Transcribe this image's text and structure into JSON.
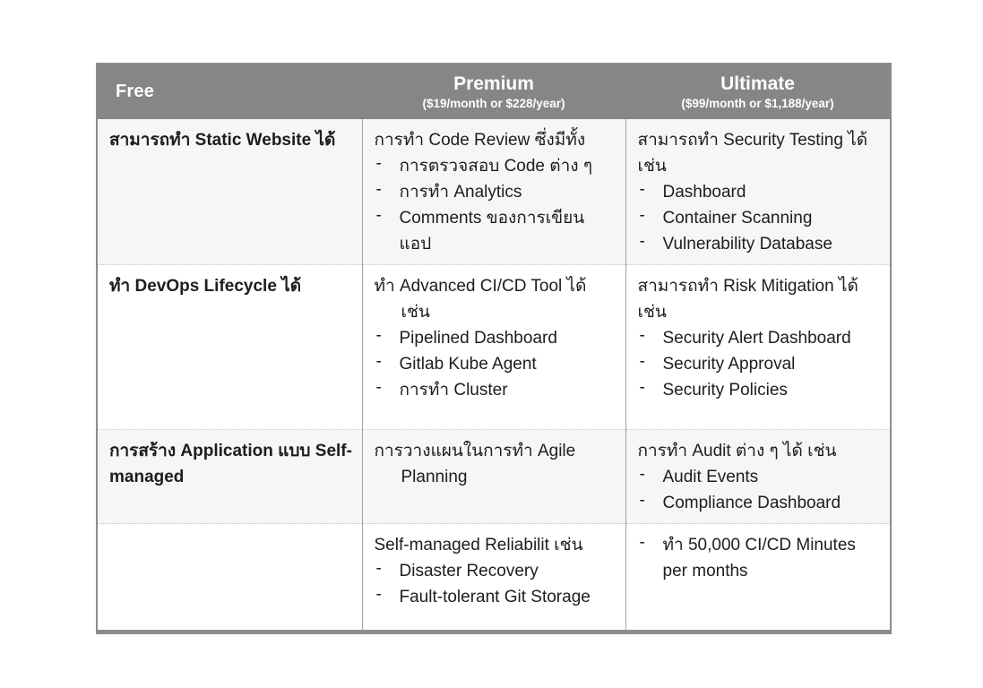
{
  "colors": {
    "header_bg": "#868686",
    "header_text": "#ffffff",
    "body_text": "#1d1d1d",
    "outer_border": "#8c8c8c",
    "column_divider": "#a0a0a0",
    "row_divider": "#c4c4c4",
    "band_bg": "#f6f6f4"
  },
  "bullet_glyph": "-",
  "table": {
    "columns": [
      {
        "title": "Free",
        "subtitle": ""
      },
      {
        "title": "Premium",
        "subtitle": "($19/month or $228/year)"
      },
      {
        "title": "Ultimate",
        "subtitle": "($99/month or $1,188/year)"
      }
    ],
    "rows": [
      {
        "cells": [
          {
            "heading_lines": [
              {
                "text": "สามารถทำ Static Website ได้",
                "indent": false
              }
            ],
            "bullets": []
          },
          {
            "heading_lines": [
              {
                "text": "การทำ Code Review ซึ่งมีทั้ง",
                "indent": false
              }
            ],
            "bullets": [
              "การตรวจสอบ Code ต่าง ๆ",
              "การทำ Analytics",
              "Comments ของการเขียนแอป"
            ]
          },
          {
            "heading_lines": [
              {
                "text": "สามารถทำ Security Testing ได้ เช่น",
                "indent": false
              }
            ],
            "bullets": [
              "Dashboard",
              "Container Scanning",
              "Vulnerability Database"
            ]
          }
        ]
      },
      {
        "cells": [
          {
            "heading_lines": [
              {
                "text": "ทำ DevOps Lifecycle ได้",
                "indent": false
              }
            ],
            "bullets": []
          },
          {
            "heading_lines": [
              {
                "text": "ทำ Advanced CI/CD Tool ได้",
                "indent": false
              },
              {
                "text": "เช่น",
                "indent": true
              }
            ],
            "bullets": [
              "Pipelined Dashboard",
              "Gitlab Kube Agent",
              "การทำ Cluster"
            ]
          },
          {
            "heading_lines": [
              {
                "text": "สามารถทำ Risk Mitigation ได้ เช่น",
                "indent": false
              }
            ],
            "bullets": [
              "Security Alert Dashboard",
              "Security Approval",
              "Security Policies"
            ]
          }
        ]
      },
      {
        "cells": [
          {
            "heading_lines": [
              {
                "text": "การสร้าง Application แบบ Self-managed",
                "indent": false
              }
            ],
            "bullets": []
          },
          {
            "heading_lines": [
              {
                "text": "การวางแผนในการทำ Agile",
                "indent": false
              },
              {
                "text": "Planning",
                "indent": true
              }
            ],
            "bullets": []
          },
          {
            "heading_lines": [
              {
                "text": "การทำ Audit ต่าง ๆ ได้ เช่น",
                "indent": false
              }
            ],
            "bullets": [
              "Audit Events",
              "Compliance Dashboard"
            ]
          }
        ]
      },
      {
        "cells": [
          {
            "heading_lines": [],
            "bullets": []
          },
          {
            "heading_lines": [
              {
                "text": "Self-managed Reliabilit เช่น",
                "indent": false
              }
            ],
            "bullets": [
              "Disaster Recovery",
              "Fault-tolerant Git Storage"
            ]
          },
          {
            "heading_lines": [],
            "bullets": [
              "ทำ 50,000 CI/CD Minutes per months"
            ]
          }
        ]
      }
    ]
  }
}
